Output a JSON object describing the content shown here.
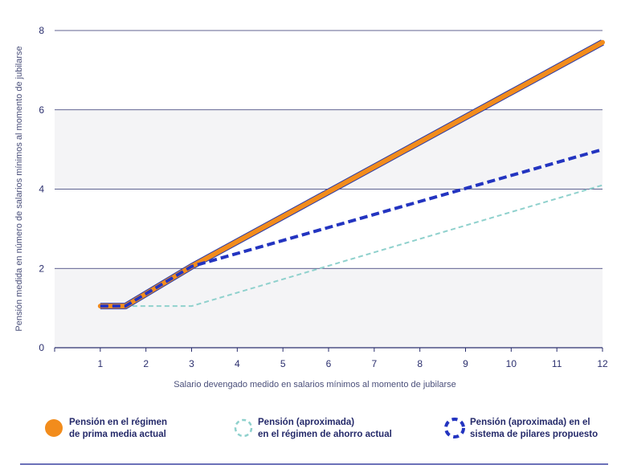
{
  "chart_data": {
    "type": "line",
    "xlabel": "Salario devengado medido en salarios mínimos al momento de jubilarse",
    "ylabel": "Pensión  medida en número de salarios mínimos al momento de jubilarse",
    "xlim": [
      0,
      12
    ],
    "ylim": [
      0,
      8
    ],
    "x_ticks": [
      1,
      2,
      3,
      4,
      5,
      6,
      7,
      8,
      9,
      10,
      11,
      12
    ],
    "y_ticks": [
      0,
      2,
      4,
      6,
      8
    ],
    "grid": "horizontal",
    "background_bands": [
      [
        0,
        2
      ],
      [
        4,
        6
      ]
    ],
    "legend_position": "bottom",
    "series": [
      {
        "name_lines": [
          "Pensión en el régimen",
          "de prima media actual"
        ],
        "color": "#f28c1c",
        "style": "solid-outlined",
        "x": [
          1,
          1.55,
          3,
          12
        ],
        "y": [
          1.05,
          1.05,
          2.05,
          7.7
        ]
      },
      {
        "name_lines": [
          "Pensión (aproximada)",
          "en el régimen de ahorro actual"
        ],
        "color": "#8fd1cd",
        "style": "dashed-thin",
        "x": [
          1,
          3,
          12
        ],
        "y": [
          1.05,
          1.05,
          4.1
        ]
      },
      {
        "name_lines": [
          "Pensión (aproximada) en el",
          "sistema de pilares propuesto"
        ],
        "color": "#2334c0",
        "style": "dashed-thick",
        "x": [
          1,
          1.55,
          3,
          12
        ],
        "y": [
          1.05,
          1.05,
          2.05,
          5.0
        ]
      }
    ],
    "colors": {
      "text": "#2b2f6e",
      "grid": "#2b2f6e",
      "band": "#f4f4f6",
      "footer_rule": "#3a40a0"
    }
  }
}
